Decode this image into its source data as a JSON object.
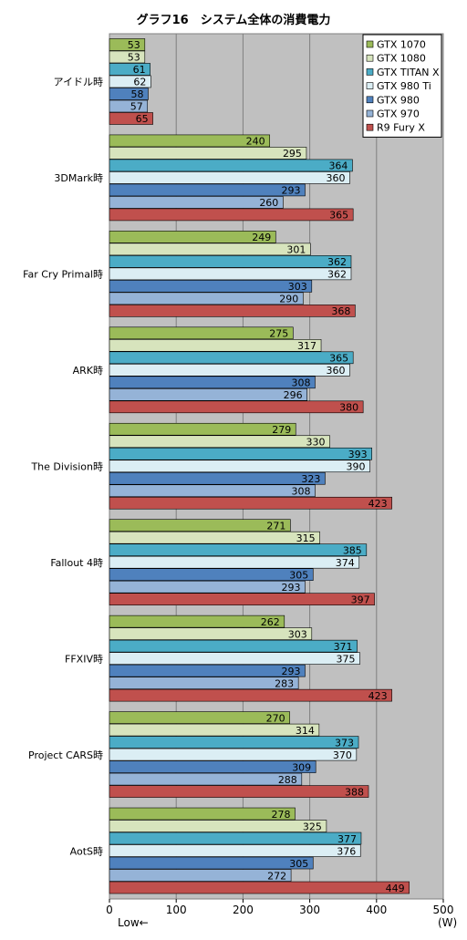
{
  "chart_data": {
    "type": "bar",
    "orientation": "horizontal",
    "title": "グラフ16　システム全体の消費電力",
    "xlabel_left": "Low←",
    "xlabel_unit": "(W)",
    "xlim": [
      0,
      500
    ],
    "xticks": [
      0,
      100,
      200,
      300,
      400,
      500
    ],
    "grid": true,
    "legend_position": "top-right",
    "categories": [
      "アイドル時",
      "3DMark時",
      "Far Cry Primal時",
      "ARK時",
      "The Division時",
      "Fallout 4時",
      "FFXIV時",
      "Project CARS時",
      "AotS時"
    ],
    "series": [
      {
        "name": "GTX 1070",
        "color": "#9bbb59",
        "values": [
          53,
          240,
          249,
          275,
          279,
          271,
          262,
          270,
          278
        ]
      },
      {
        "name": "GTX 1080",
        "color": "#d7e4bd",
        "values": [
          53,
          295,
          301,
          317,
          330,
          315,
          303,
          314,
          325
        ]
      },
      {
        "name": "GTX TITAN X",
        "color": "#4bacc6",
        "values": [
          61,
          364,
          362,
          365,
          393,
          385,
          371,
          373,
          377
        ]
      },
      {
        "name": "GTX 980 Ti",
        "color": "#dbeef4",
        "values": [
          62,
          360,
          362,
          360,
          390,
          374,
          375,
          370,
          376
        ]
      },
      {
        "name": "GTX 980",
        "color": "#4f81bd",
        "values": [
          58,
          293,
          303,
          308,
          323,
          305,
          293,
          309,
          305
        ]
      },
      {
        "name": "GTX 970",
        "color": "#95b3d7",
        "values": [
          57,
          260,
          290,
          296,
          308,
          293,
          283,
          288,
          272
        ]
      },
      {
        "name": "R9 Fury X",
        "color": "#c0504d",
        "values": [
          65,
          365,
          368,
          380,
          423,
          397,
          423,
          388,
          449
        ]
      }
    ]
  }
}
